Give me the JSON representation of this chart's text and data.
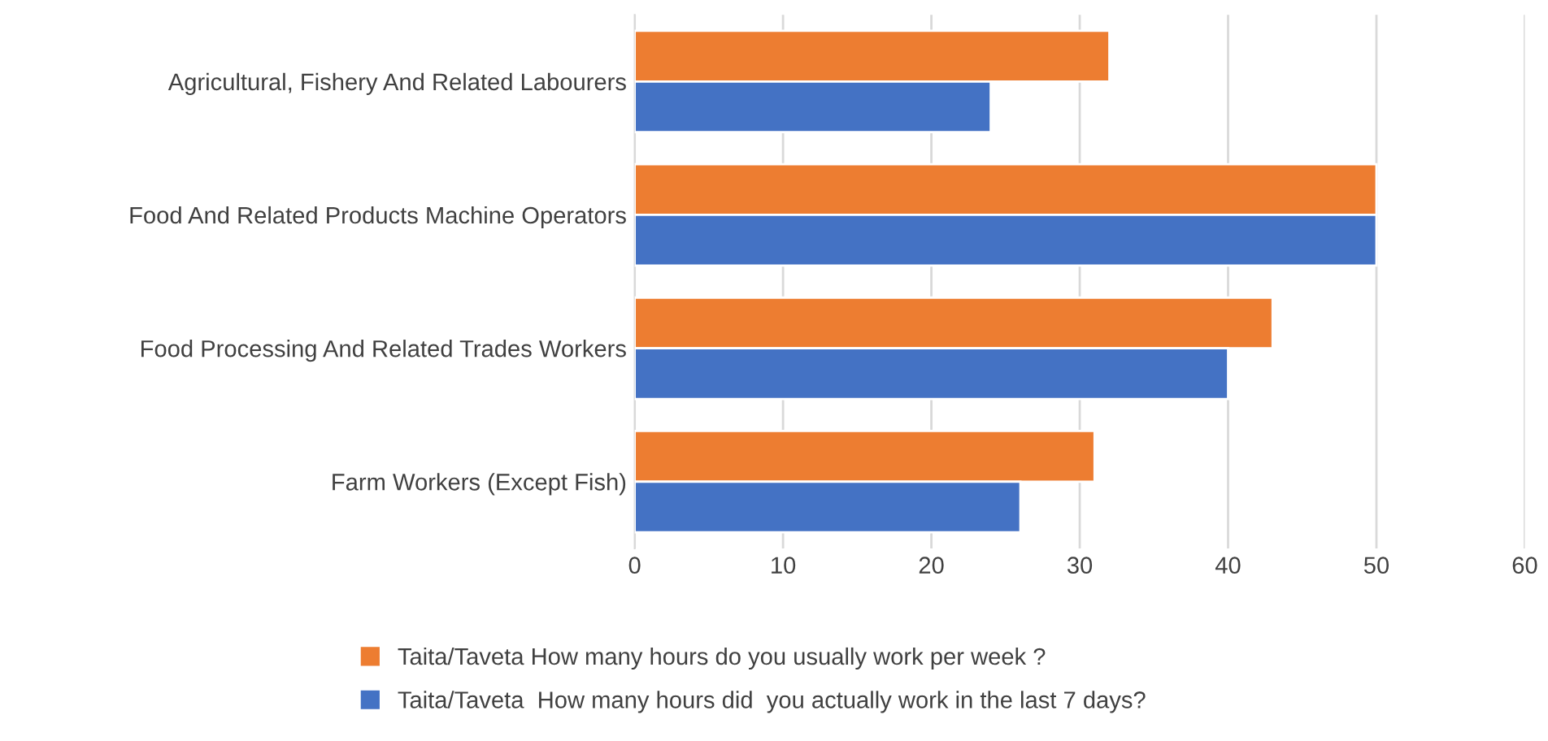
{
  "chart_data": {
    "type": "bar",
    "orientation": "horizontal",
    "categories": [
      "Agricultural, Fishery And Related Labourers",
      "Food And Related Products Machine Operators",
      "Food Processing And Related Trades Workers",
      "Farm Workers (Except Fish)"
    ],
    "series": [
      {
        "name": "Taita/Taveta How many hours do you usually work per week ?",
        "color": "#ed7d31",
        "values": [
          32,
          50,
          43,
          31
        ]
      },
      {
        "name": "Taita/Taveta  How many hours did  you actually work in the last 7 days?",
        "color": "#4472c4",
        "values": [
          24,
          50,
          40,
          26
        ]
      }
    ],
    "xlim": [
      0,
      60
    ],
    "xticks": [
      0,
      10,
      20,
      30,
      40,
      50,
      60
    ],
    "grid": "x",
    "legend": "bottom"
  }
}
